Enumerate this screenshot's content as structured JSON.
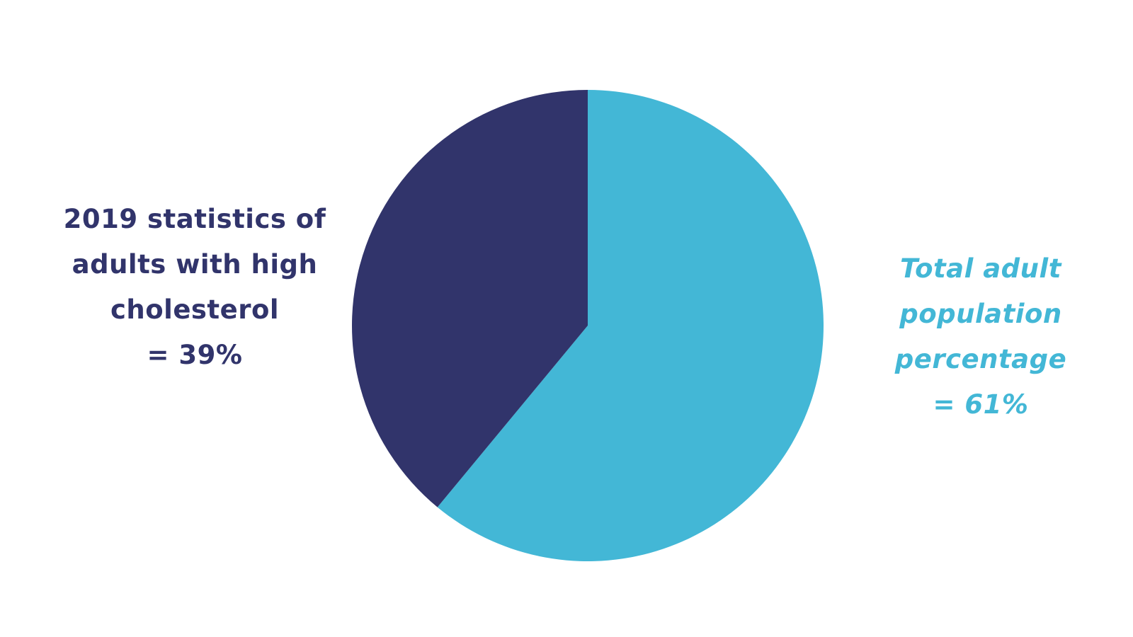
{
  "chart_data": {
    "type": "pie",
    "slices": [
      {
        "label_lines": [
          "2019 statistics of",
          "adults with high",
          "cholesterol",
          "= 39%"
        ],
        "value": 39,
        "color": "#31346b"
      },
      {
        "label_lines": [
          "Total adult",
          "population",
          "percentage",
          "= 61%"
        ],
        "value": 61,
        "color": "#43b7d6"
      }
    ],
    "start_angle_deg": 0,
    "direction": "clockwise-for-second-slice"
  }
}
